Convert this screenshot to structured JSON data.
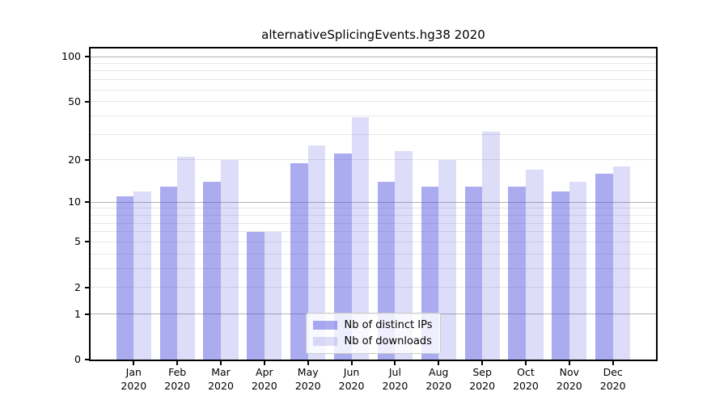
{
  "title": "alternativeSplicingEvents.hg38 2020",
  "chart_data": {
    "type": "bar",
    "title": "alternativeSplicingEvents.hg38 2020",
    "categories": [
      "Jan",
      "Feb",
      "Mar",
      "Apr",
      "May",
      "Jun",
      "Jul",
      "Aug",
      "Sep",
      "Oct",
      "Nov",
      "Dec"
    ],
    "x_year_label": "2020",
    "series": [
      {
        "name": "Nb of distinct IPs",
        "color": "rgba(68,68,221,0.45)",
        "values": [
          11,
          13,
          14,
          6,
          19,
          22,
          14,
          13,
          13,
          13,
          12,
          16
        ]
      },
      {
        "name": "Nb of downloads",
        "color": "rgba(68,68,221,0.18)",
        "values": [
          12,
          21,
          20,
          6,
          25,
          39,
          23,
          20,
          31,
          17,
          14,
          18
        ]
      }
    ],
    "y_axis": {
      "scale": "log1p",
      "tick_labels": [
        100,
        50,
        20,
        10,
        5,
        2,
        1,
        0
      ],
      "top_value": 113.3,
      "major_gridlines": [
        1,
        10,
        100
      ],
      "minor_gridlines": [
        2,
        3,
        4,
        5,
        6,
        7,
        8,
        9,
        20,
        30,
        40,
        50,
        60,
        70,
        80,
        90
      ]
    },
    "legend": {
      "position": "lower center"
    },
    "grid": true,
    "xlabel": "",
    "ylabel": ""
  },
  "colors": {
    "major_grid": "#b2b2b2",
    "minor_grid": "#e7e7e7",
    "spine": "#000000",
    "background": "#ffffff"
  }
}
